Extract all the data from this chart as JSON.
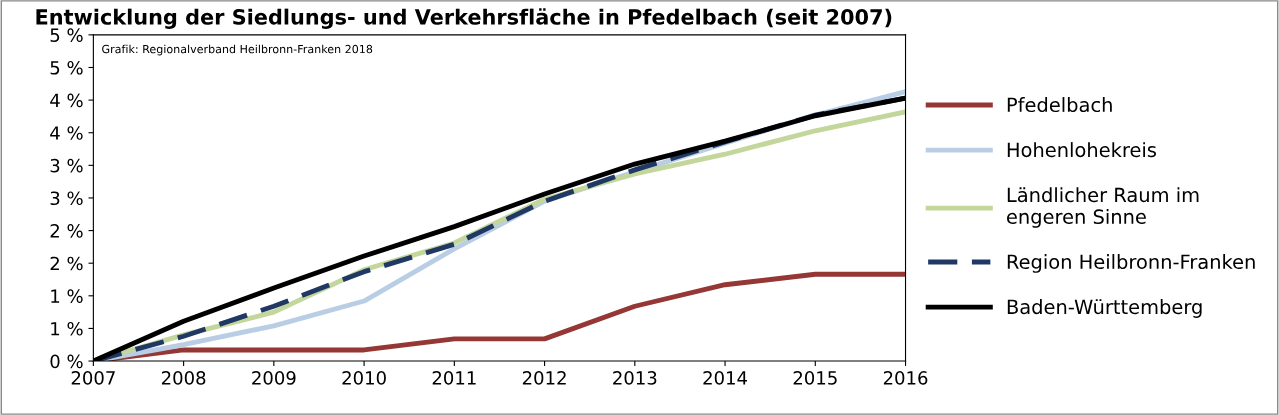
{
  "chart_data": {
    "type": "line",
    "title": "Entwicklung der Siedlungs- und Verkehrsfläche in Pfedelbach (seit 2007)",
    "x": [
      2007,
      2008,
      2009,
      2010,
      2011,
      2012,
      2013,
      2014,
      2015,
      2016
    ],
    "series": [
      {
        "name": "Pfedelbach",
        "color": "#953735",
        "values": [
          0,
          0.17,
          0.17,
          0.17,
          0.34,
          0.34,
          0.84,
          1.17,
          1.33,
          1.33
        ]
      },
      {
        "name": "Hohenlohekreis",
        "color": "#b9cde5",
        "values": [
          0,
          0.25,
          0.54,
          0.92,
          1.72,
          2.45,
          2.9,
          3.34,
          3.77,
          4.13
        ]
      },
      {
        "name": "Ländlicher Raum im\nengeren Sinne",
        "color": "#c3d69b",
        "values": [
          0,
          0.4,
          0.75,
          1.4,
          1.81,
          2.48,
          2.87,
          3.17,
          3.53,
          3.82
        ]
      },
      {
        "name": "Region Heilbronn-Franken",
        "color": "#1f3864",
        "line_style": "dashed",
        "values": [
          0,
          0.38,
          0.84,
          1.37,
          1.79,
          2.45,
          2.93,
          3.36,
          3.77,
          4.03
        ]
      },
      {
        "name": "Baden-Württemberg",
        "color": "#000000",
        "values": [
          0,
          0.61,
          1.12,
          1.61,
          2.06,
          2.56,
          3.02,
          3.37,
          3.76,
          4.03
        ]
      }
    ],
    "xlim": [
      2007,
      2016
    ],
    "xticks": [
      2007,
      2008,
      2009,
      2010,
      2011,
      2012,
      2013,
      2014,
      2015,
      2016
    ],
    "ylim": [
      0,
      5
    ],
    "yticks": [
      {
        "value": 0,
        "label": "0 %"
      },
      {
        "value": 0.5,
        "label": "1 %"
      },
      {
        "value": 1,
        "label": "1 %"
      },
      {
        "value": 1.5,
        "label": "2 %"
      },
      {
        "value": 2,
        "label": "2 %"
      },
      {
        "value": 2.5,
        "label": "3 %"
      },
      {
        "value": 3,
        "label": "3 %"
      },
      {
        "value": 3.5,
        "label": "4 %"
      },
      {
        "value": 4,
        "label": "4 %"
      },
      {
        "value": 4.5,
        "label": "5 %"
      },
      {
        "value": 5,
        "label": "5 %"
      }
    ],
    "annotations": [
      "Grafik: Regionalverband Heilbronn-Franken 2018"
    ],
    "grid": false,
    "legend": "right",
    "marker": "none"
  }
}
